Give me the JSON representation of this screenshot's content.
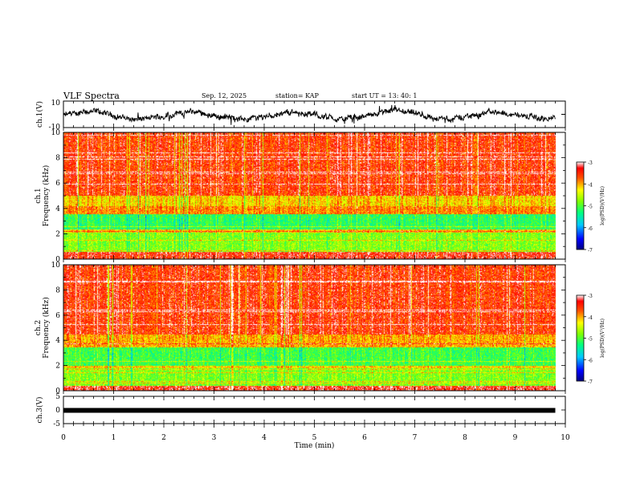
{
  "header": {
    "title": "VLF Spectra",
    "date": "Sep. 12, 2025",
    "station": "station= KAP",
    "start_ut": "start  UT  =   13: 40: 1"
  },
  "chart_data": [
    {
      "type": "line",
      "name": "ch1-waveform",
      "ylabel": "ch.1(V)",
      "xlim": [
        0,
        9.8
      ],
      "ylim": [
        -10,
        10
      ],
      "ytick_labels": [
        "10",
        "-10"
      ],
      "baseline": 3.0,
      "amplitude": 3.5,
      "color": "#000000"
    },
    {
      "type": "heatmap",
      "name": "ch1-spectrogram",
      "ylabel": "ch.1\nFrequency  (kHz)",
      "ylabel_top": "ch.1",
      "ylabel_bottom": "Frequency  (kHz)",
      "xlim": [
        0,
        10
      ],
      "ylim": [
        0,
        10
      ],
      "ytick_labels": [
        "0",
        "2",
        "4",
        "6",
        "8",
        "10"
      ],
      "colorbar": {
        "label": "log(PSD)(V²/Hz)",
        "range": [
          -7,
          -3
        ],
        "tick_labels": [
          "-3",
          "-4",
          "-5",
          "-6",
          "-7"
        ]
      }
    },
    {
      "type": "heatmap",
      "name": "ch2-spectrogram",
      "ylabel_top": "ch.2",
      "ylabel_bottom": "Frequency  (kHz)",
      "xlim": [
        0,
        10
      ],
      "ylim": [
        0,
        10
      ],
      "ytick_labels": [
        "0",
        "2",
        "4",
        "6",
        "8",
        "10"
      ],
      "colorbar": {
        "label": "log(PSD)(V²/Hz)",
        "range": [
          -7,
          -3
        ],
        "tick_labels": [
          "-3",
          "-4",
          "-5",
          "-6",
          "-7"
        ]
      }
    },
    {
      "type": "line",
      "name": "ch3-waveform",
      "ylabel": "ch.3(V)",
      "xlim": [
        0,
        9.8
      ],
      "ylim": [
        -5,
        5
      ],
      "ytick_labels": [
        "5",
        "0",
        "-5"
      ],
      "baseline": 0,
      "color": "#000000"
    }
  ],
  "x_axis": {
    "label": "Time  (min)",
    "range": [
      0,
      10
    ],
    "tick_labels": [
      "0",
      "1",
      "2",
      "3",
      "4",
      "5",
      "6",
      "7",
      "8",
      "9",
      "10"
    ]
  }
}
